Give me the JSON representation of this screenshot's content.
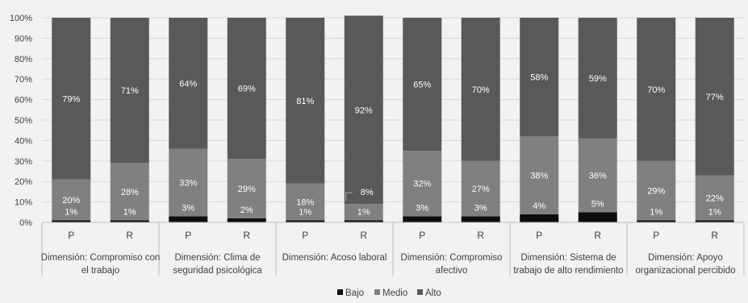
{
  "chart_data": {
    "type": "bar",
    "stacked": true,
    "ylim": [
      0,
      100
    ],
    "y_tick_labels": [
      "0%",
      "10%",
      "20%",
      "30%",
      "40%",
      "50%",
      "60%",
      "70%",
      "80%",
      "90%",
      "100%"
    ],
    "grid": true,
    "legend_position": "bottom",
    "groups": [
      {
        "label": "Dimensión: Compromiso con el trabajo",
        "label_lines": [
          "Dimensión: Compromiso con",
          "el trabajo"
        ]
      },
      {
        "label": "Dimensión: Clima de seguridad psicológica",
        "label_lines": [
          "Dimensión: Clima de",
          "seguridad psicológica"
        ]
      },
      {
        "label": "Dimensión: Acoso laboral",
        "label_lines": [
          "Dimensión: Acoso laboral"
        ]
      },
      {
        "label": "Dimensión: Compromiso afectivo",
        "label_lines": [
          "Dimensión: Compromiso",
          "afectivo"
        ]
      },
      {
        "label": "Dimensión: Sistema de trabajo de alto rendimiento",
        "label_lines": [
          "Dimensión: Sistema de",
          "trabajo de alto rendimiento"
        ]
      },
      {
        "label": "Dimensión: Apoyo organizacional percibido",
        "label_lines": [
          "Dimensión: Apoyo",
          "organizacional percibido"
        ]
      }
    ],
    "categories": [
      "P",
      "R",
      "P",
      "R",
      "P",
      "R",
      "P",
      "R",
      "P",
      "R",
      "P",
      "R"
    ],
    "series": [
      {
        "name": "Bajo",
        "color": "#0d0d0d",
        "values": [
          1,
          1,
          3,
          2,
          1,
          1,
          3,
          3,
          4,
          5,
          1,
          1
        ]
      },
      {
        "name": "Medio",
        "color": "#808080",
        "values": [
          20,
          28,
          33,
          29,
          18,
          8,
          32,
          27,
          38,
          36,
          29,
          22
        ]
      },
      {
        "name": "Alto",
        "color": "#595959",
        "values": [
          79,
          71,
          64,
          69,
          81,
          92,
          65,
          70,
          58,
          59,
          70,
          77
        ]
      }
    ],
    "data_labels": [
      {
        "bajo": "1%",
        "medio": "20%",
        "alto": "79%"
      },
      {
        "bajo": "1%",
        "medio": "28%",
        "alto": "71%"
      },
      {
        "bajo": "3%",
        "medio": "33%",
        "alto": "64%"
      },
      {
        "bajo": "2%",
        "medio": "29%",
        "alto": "69%"
      },
      {
        "bajo": "1%",
        "medio": "18%",
        "alto": "81%"
      },
      {
        "bajo": "1%",
        "medio": "8%",
        "alto": "92%"
      },
      {
        "bajo": "3%",
        "medio": "32%",
        "alto": "65%"
      },
      {
        "bajo": "3%",
        "medio": "27%",
        "alto": "70%"
      },
      {
        "bajo": "4%",
        "medio": "38%",
        "alto": "58%"
      },
      {
        "bajo": "5%",
        "medio": "36%",
        "alto": "59%"
      },
      {
        "bajo": "1%",
        "medio": "29%",
        "alto": "70%"
      },
      {
        "bajo": "1%",
        "medio": "22%",
        "alto": "77%"
      }
    ]
  }
}
